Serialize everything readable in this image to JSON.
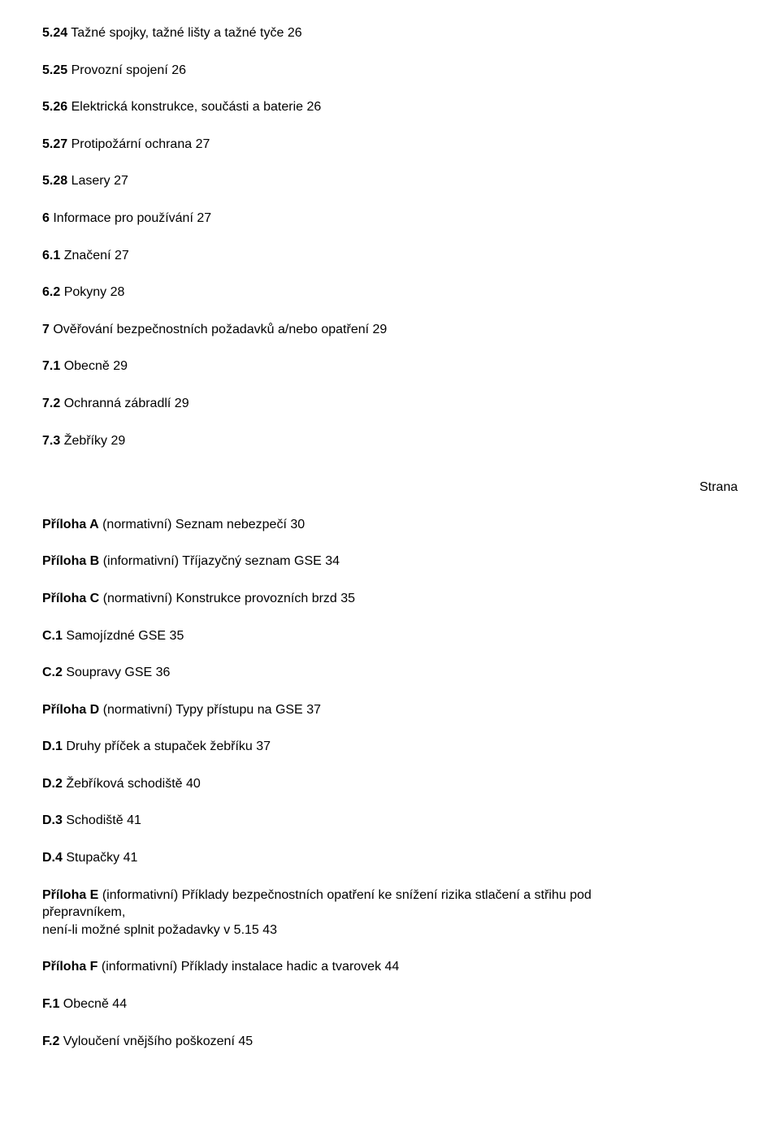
{
  "toc": {
    "section5": [
      {
        "num": "5.24",
        "title": "Tažné spojky, tažné lišty a tažné tyče",
        "page": "26"
      },
      {
        "num": "5.25",
        "title": "Provozní spojení",
        "page": "26"
      },
      {
        "num": "5.26",
        "title": "Elektrická konstrukce, součásti a baterie",
        "page": "26"
      },
      {
        "num": "5.27",
        "title": "Protipožární ochrana",
        "page": "27"
      },
      {
        "num": "5.28",
        "title": "Lasery",
        "page": "27"
      }
    ],
    "section6": {
      "head": {
        "num": "6",
        "title": "Informace pro používání",
        "page": "27"
      },
      "items": [
        {
          "num": "6.1",
          "title": "Značení",
          "page": "27"
        },
        {
          "num": "6.2",
          "title": "Pokyny",
          "page": "28"
        }
      ]
    },
    "section7": {
      "head": {
        "num": "7",
        "title": "Ověřování bezpečnostních požadavků a/nebo opatření",
        "page": "29"
      },
      "items": [
        {
          "num": "7.1",
          "title": "Obecně",
          "page": "29"
        },
        {
          "num": "7.2",
          "title": "Ochranná zábradlí",
          "page": "29"
        },
        {
          "num": "7.3",
          "title": "Žebříky",
          "page": "29"
        }
      ]
    },
    "strana_label": "Strana",
    "annexA": {
      "label": "Příloha A",
      "note": "(normativní)",
      "title": "Seznam nebezpečí",
      "page": "30"
    },
    "annexB": {
      "label": "Příloha B",
      "note": "(informativní)",
      "title": "Tříjazyčný seznam GSE",
      "page": "34"
    },
    "annexC": {
      "head": {
        "label": "Příloha C",
        "note": "(normativní)",
        "title": "Konstrukce provozních brzd",
        "page": "35"
      },
      "items": [
        {
          "num": "C.1",
          "title": "Samojízdné GSE",
          "page": "35"
        },
        {
          "num": "C.2",
          "title": "Soupravy GSE",
          "page": "36"
        }
      ]
    },
    "annexD": {
      "head": {
        "label": "Příloha D",
        "note": "(normativní)",
        "title": "Typy přístupu na GSE",
        "page": "37"
      },
      "items": [
        {
          "num": "D.1",
          "title": "Druhy příček a stupaček žebříku",
          "page": "37"
        },
        {
          "num": "D.2",
          "title": "Žebříková schodiště",
          "page": "40"
        },
        {
          "num": "D.3",
          "title": "Schodiště",
          "page": "41"
        },
        {
          "num": "D.4",
          "title": "Stupačky",
          "page": "41"
        }
      ]
    },
    "annexE": {
      "label": "Příloha E",
      "note": "(informativní)",
      "title_l1": "Příklady bezpečnostních opatření ke snížení rizika stlačení a střihu pod",
      "title_l2": "přepravníkem,",
      "title_l3": "není-li možné splnit požadavky v 5.15",
      "page": "43"
    },
    "annexF": {
      "head": {
        "label": "Příloha F",
        "note": "(informativní)",
        "title": "Příklady instalace hadic a tvarovek",
        "page": "44"
      },
      "items": [
        {
          "num": "F.1",
          "title": "Obecně",
          "page": "44"
        },
        {
          "num": "F.2",
          "title": "Vyloučení vnějšího poškození",
          "page": "45"
        }
      ]
    }
  }
}
